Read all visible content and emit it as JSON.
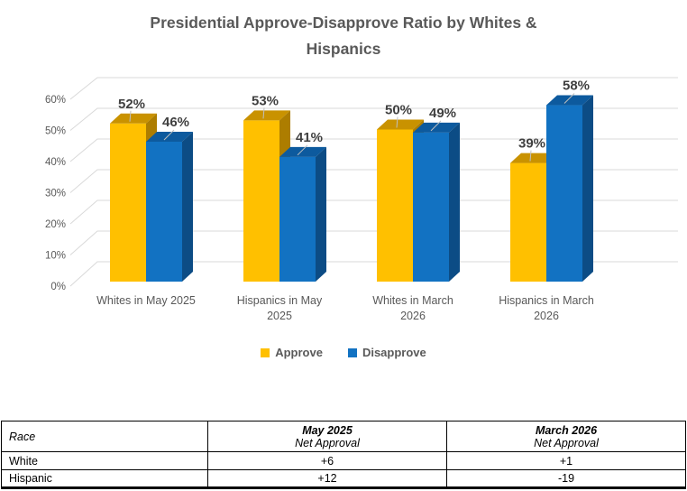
{
  "title": "Presidential Approve-Disapprove Ratio by Whites & Hispanics",
  "chart_data": {
    "type": "bar",
    "subtype": "3d-clustered-column",
    "title": "Presidential Approve-Disapprove Ratio by Whites & Hispanics",
    "categories": [
      "Whites in  May 2025",
      "Hispanics in May 2025",
      "Whites in March 2026",
      "Hispanics in March 2026"
    ],
    "category_label_lines": [
      [
        "Whites in  May 2025"
      ],
      [
        "Hispanics in May",
        "2025"
      ],
      [
        "Whites in March",
        "2026"
      ],
      [
        "Hispanics in March",
        "2026"
      ]
    ],
    "series": [
      {
        "name": "Approve",
        "values": [
          52,
          53,
          50,
          39
        ],
        "color": "#FFC000",
        "color_top": "#C99200",
        "color_side": "#AD7D00"
      },
      {
        "name": "Disapprove",
        "values": [
          46,
          41,
          49,
          58
        ],
        "color": "#1272C2",
        "color_top": "#0D5A9E",
        "color_side": "#0C4C85"
      }
    ],
    "value_labels": [
      [
        "52%",
        "53%",
        "50%",
        "39%"
      ],
      [
        "46%",
        "41%",
        "49%",
        "58%"
      ]
    ],
    "ylim": [
      0,
      60
    ],
    "ytick_labels": [
      "0%",
      "10%",
      "20%",
      "30%",
      "40%",
      "50%",
      "60%"
    ],
    "grid": true,
    "legend_position": "bottom",
    "gridline_color": "#D9D9D9",
    "label_color": "#404040",
    "axis_text_color": "#595959"
  },
  "table": {
    "race_header": "Race",
    "columns": [
      {
        "title": "May 2025",
        "subtitle": "Net Approval"
      },
      {
        "title": "March 2026",
        "subtitle": "Net Approval"
      }
    ],
    "rows": [
      {
        "race": "White",
        "values": [
          "+6",
          "+1"
        ]
      },
      {
        "race": "Hispanic",
        "values": [
          "+12",
          "-19"
        ]
      }
    ]
  }
}
